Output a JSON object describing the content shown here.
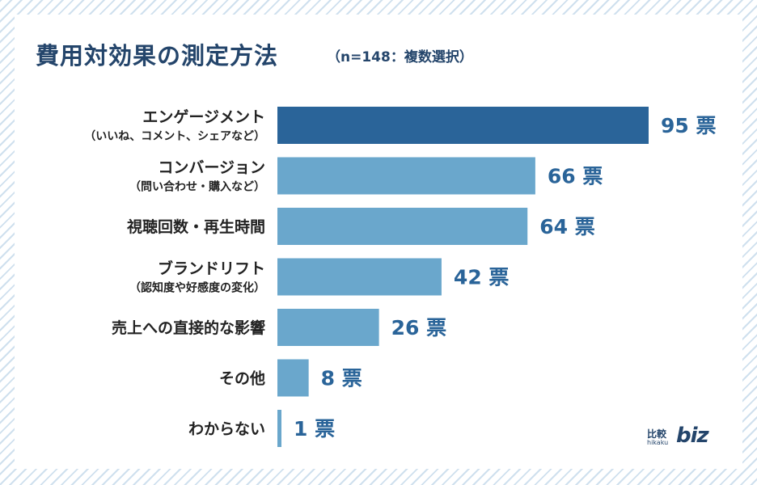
{
  "chart_data": {
    "type": "bar",
    "orientation": "horizontal",
    "title": "費用対効果の測定方法",
    "subtitle": "（n=148：複数選択）",
    "unit": "票",
    "categories": [
      {
        "label": "エンゲージメント",
        "sublabel": "（いいね、コメント、シェアなど）"
      },
      {
        "label": "コンバージョン",
        "sublabel": "（問い合わせ・購入など）"
      },
      {
        "label": "視聴回数・再生時間",
        "sublabel": ""
      },
      {
        "label": "ブランドリフト",
        "sublabel": "（認知度や好感度の変化）"
      },
      {
        "label": "売上への直接的な影響",
        "sublabel": ""
      },
      {
        "label": "その他",
        "sublabel": ""
      },
      {
        "label": "わからない",
        "sublabel": ""
      }
    ],
    "values": [
      95,
      66,
      64,
      42,
      26,
      8,
      1
    ],
    "value_labels": [
      "95 票",
      "66 票",
      "64 票",
      "42 票",
      "26 票",
      "8 票",
      "1 票"
    ],
    "highlight_index": 0,
    "xlim": [
      0,
      95
    ],
    "colors": {
      "highlight": "#2a6499",
      "normal": "#6aa7cc",
      "label": "#222222",
      "value": "#2a6499",
      "title": "#24456b"
    }
  },
  "logo": {
    "kanji": "比較",
    "romaji": "hikaku",
    "brand": "biz"
  }
}
